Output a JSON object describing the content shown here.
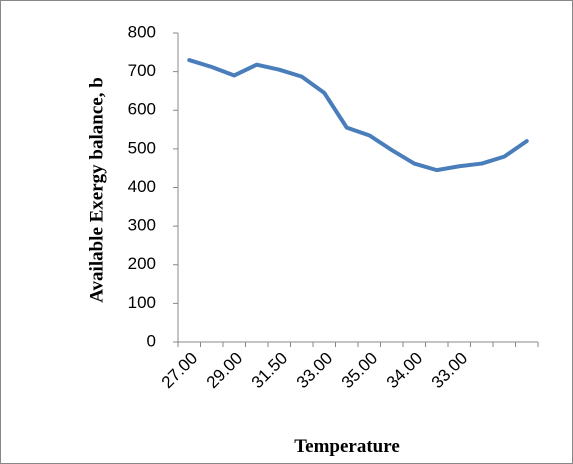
{
  "chart_data": {
    "type": "line",
    "x_label": "Temperature",
    "y_label": "Available Exergy balance, b",
    "categories": [
      "27.00",
      null,
      "29.00",
      null,
      "31.50",
      null,
      "33.00",
      null,
      "35.00",
      null,
      "34.00",
      null,
      "33.00",
      null,
      null,
      null
    ],
    "series": [
      {
        "name": "Available Exergy balance",
        "color": "#4a7ebb",
        "values": [
          730,
          712,
          690,
          718,
          705,
          687,
          645,
          555,
          535,
          497,
          462,
          445,
          455,
          462,
          480,
          520
        ]
      }
    ],
    "ylim": [
      0,
      800
    ],
    "yticks": [
      0,
      100,
      200,
      300,
      400,
      500,
      600,
      700,
      800
    ]
  }
}
